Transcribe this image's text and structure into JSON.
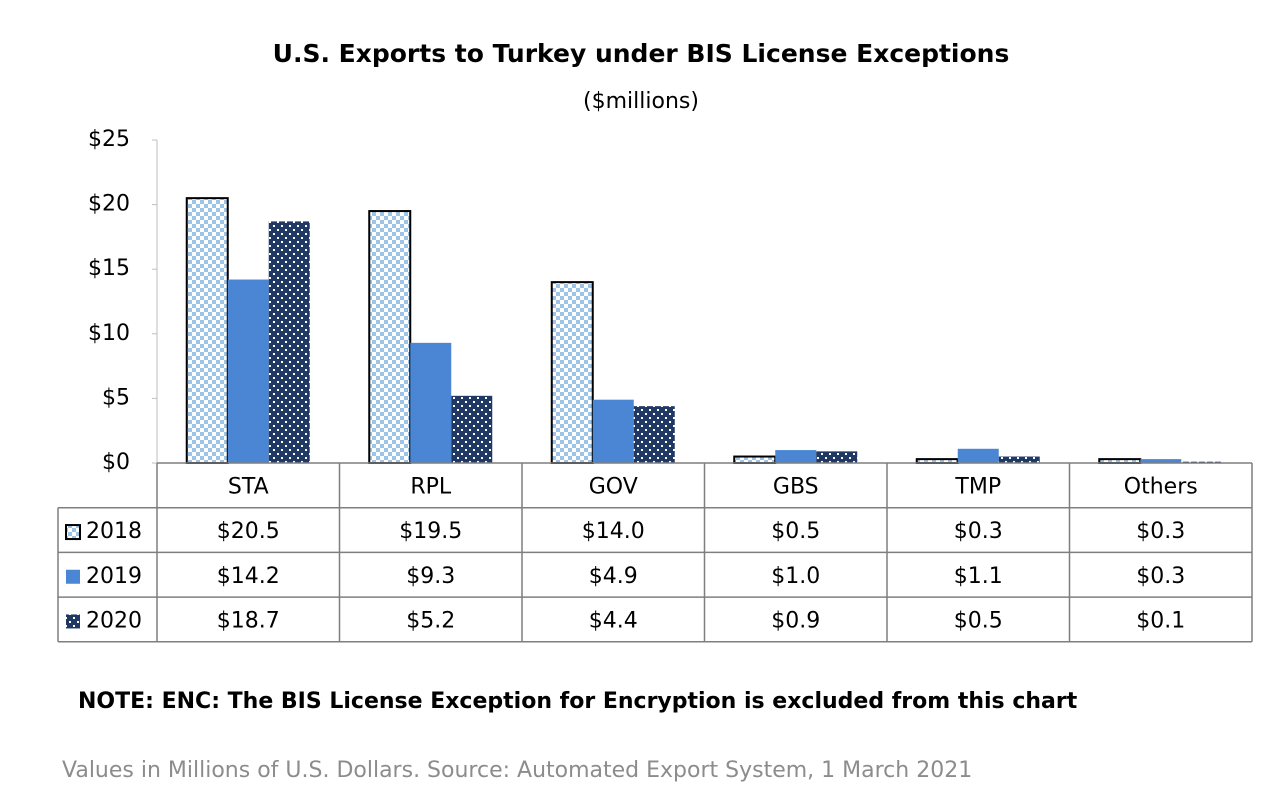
{
  "chart_data": {
    "type": "bar",
    "title": "U.S. Exports to Turkey under BIS License Exceptions",
    "subtitle": "($millions)",
    "categories": [
      "STA",
      "RPL",
      "GOV",
      "GBS",
      "TMP",
      "Others"
    ],
    "series": [
      {
        "name": "2018",
        "color": "#9dc3e6",
        "pattern": "checker",
        "values": [
          20.5,
          19.5,
          14.0,
          0.5,
          0.3,
          0.3
        ],
        "value_labels": [
          "$20.5",
          "$19.5",
          "$14.0",
          "$0.5",
          "$0.3",
          "$0.3"
        ]
      },
      {
        "name": "2019",
        "color": "#4a86d4",
        "pattern": "solid",
        "values": [
          14.2,
          9.3,
          4.9,
          1.0,
          1.1,
          0.3
        ],
        "value_labels": [
          "$14.2",
          "$9.3",
          "$4.9",
          "$1.0",
          "$1.1",
          "$0.3"
        ]
      },
      {
        "name": "2020",
        "color": "#1f3864",
        "pattern": "dots",
        "values": [
          18.7,
          5.2,
          4.4,
          0.9,
          0.5,
          0.1
        ],
        "value_labels": [
          "$18.7",
          "$5.2",
          "$4.4",
          "$0.9",
          "$0.5",
          "$0.1"
        ]
      }
    ],
    "ylim": [
      0,
      25
    ],
    "yticks": [
      {
        "value": 0,
        "label": "$0"
      },
      {
        "value": 5,
        "label": "$5"
      },
      {
        "value": 10,
        "label": "$10"
      },
      {
        "value": 15,
        "label": "$15"
      },
      {
        "value": 20,
        "label": "$20"
      },
      {
        "value": 25,
        "label": "$25"
      }
    ],
    "note": "NOTE: ENC: The BIS License Exception for Encryption is excluded from this chart",
    "source": "Values in Millions of U.S. Dollars. Source: Automated Export System, 1 March 2021"
  }
}
